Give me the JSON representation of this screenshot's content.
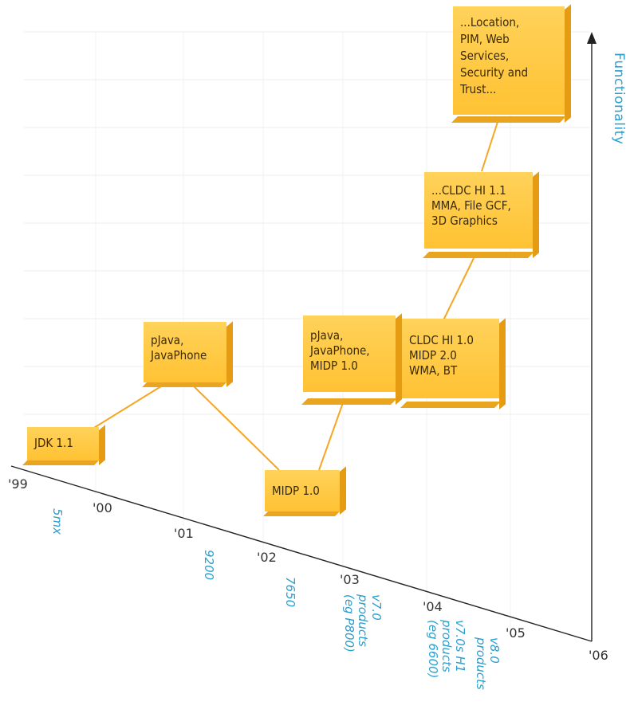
{
  "axis": {
    "y_label": "Functionality",
    "years": [
      "'99",
      "'00",
      "'01",
      "'02",
      "'03",
      "'04",
      "'05",
      "'06"
    ]
  },
  "products": [
    "5mx",
    "9200",
    "7650",
    "v7.0\nproducts\n(eg P800)",
    "v7.0s H1\nproducts\n(eg 6600)",
    "v8.0\nproducts"
  ],
  "nodes": [
    {
      "id": "jdk",
      "label": "JDK 1.1"
    },
    {
      "id": "pjava1",
      "label": "pJava,\nJavaPhone"
    },
    {
      "id": "midp1",
      "label": "MIDP 1.0"
    },
    {
      "id": "pjava2",
      "label": "pJava,\nJavaPhone,\nMIDP 1.0"
    },
    {
      "id": "cldc10",
      "label": "CLDC HI 1.0\nMIDP 2.0\nWMA, BT"
    },
    {
      "id": "cldc11",
      "label": "...CLDC HI 1.1\nMMA, File GCF,\n3D Graphics"
    },
    {
      "id": "location",
      "label": "...Location,\nPIM, Web\nServices,\nSecurity and\nTrust..."
    }
  ],
  "colors": {
    "box_face": "#ffc233",
    "box_side": "#e59b12",
    "connector": "#f5a623",
    "axis": "#222222",
    "label_blue": "#2a9fd0"
  }
}
